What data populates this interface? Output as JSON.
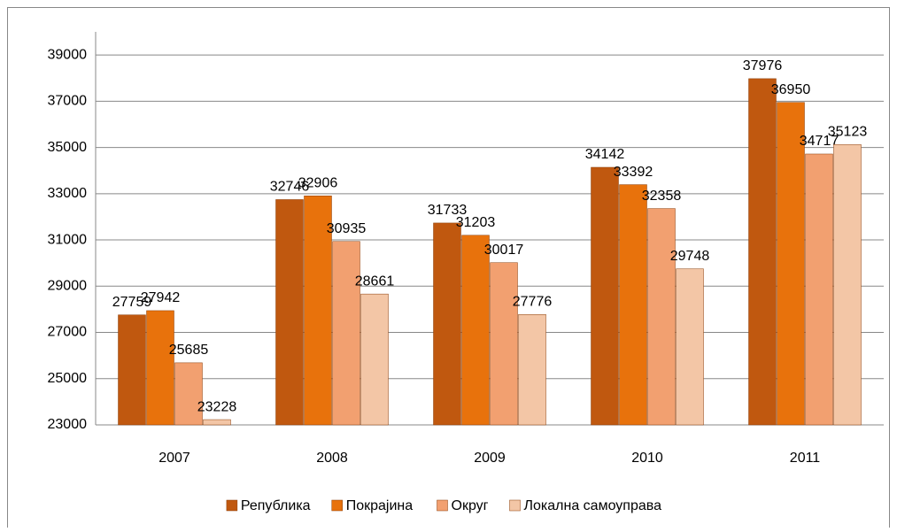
{
  "chart_data": {
    "type": "bar",
    "categories": [
      "2007",
      "2008",
      "2009",
      "2010",
      "2011"
    ],
    "series": [
      {
        "name": "Република",
        "color": "#c0580f",
        "values": [
          27759,
          32746,
          31733,
          34142,
          37976
        ]
      },
      {
        "name": "Покрајина",
        "color": "#e8720c",
        "values": [
          27942,
          32906,
          31203,
          33392,
          36950
        ]
      },
      {
        "name": "Округ",
        "color": "#f2a070",
        "values": [
          25685,
          30935,
          30017,
          32358,
          34717
        ]
      },
      {
        "name": "Локална самоуправа",
        "color": "#f3c6a6",
        "values": [
          23228,
          28661,
          27776,
          29748,
          35123
        ]
      }
    ],
    "ylim": [
      23000,
      40000
    ],
    "yticks": [
      23000,
      25000,
      27000,
      29000,
      31000,
      33000,
      35000,
      37000,
      39000
    ],
    "grid": true,
    "legend": "bottom"
  }
}
